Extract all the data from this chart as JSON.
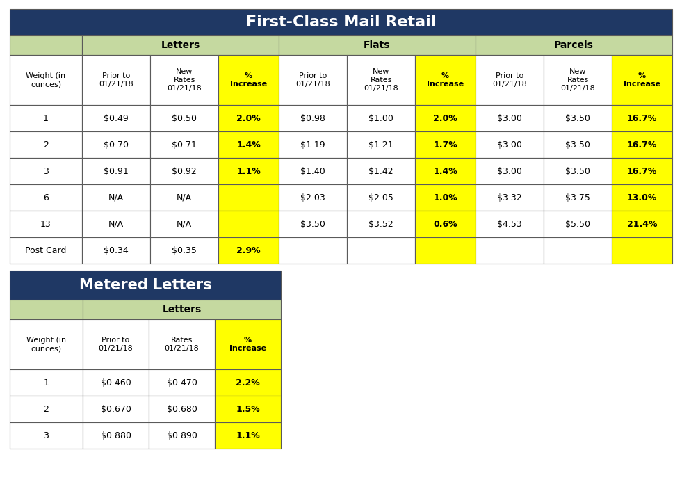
{
  "title1": "First-Class Mail Retail",
  "title2": "Metered Letters",
  "title_bg": "#1F3864",
  "title_fg": "#FFFFFF",
  "header_bg": "#C5D9A0",
  "header_fg": "#000000",
  "yellow_bg": "#FFFF00",
  "yellow_fg": "#000000",
  "white_bg": "#FFFFFF",
  "border_color": "#5A5A5A",
  "fcm_col_headers": [
    "Weight (in\nounces)",
    "Prior to\n01/21/18",
    "New\nRates\n01/21/18",
    "%\nIncrease",
    "Prior to\n01/21/18",
    "New\nRates\n01/21/18",
    "%\nIncrease",
    "Prior to\n01/21/18",
    "New\nRates\n01/21/18",
    "%\nIncrease"
  ],
  "fcm_rows": [
    [
      "1",
      "$0.49",
      "$0.50",
      "2.0%",
      "$0.98",
      "$1.00",
      "2.0%",
      "$3.00",
      "$3.50",
      "16.7%"
    ],
    [
      "2",
      "$0.70",
      "$0.71",
      "1.4%",
      "$1.19",
      "$1.21",
      "1.7%",
      "$3.00",
      "$3.50",
      "16.7%"
    ],
    [
      "3",
      "$0.91",
      "$0.92",
      "1.1%",
      "$1.40",
      "$1.42",
      "1.4%",
      "$3.00",
      "$3.50",
      "16.7%"
    ],
    [
      "6",
      "N/A",
      "N/A",
      "",
      "$2.03",
      "$2.05",
      "1.0%",
      "$3.32",
      "$3.75",
      "13.0%"
    ],
    [
      "13",
      "N/A",
      "N/A",
      "",
      "$3.50",
      "$3.52",
      "0.6%",
      "$4.53",
      "$5.50",
      "21.4%"
    ],
    [
      "Post Card",
      "$0.34",
      "$0.35",
      "2.9%",
      "",
      "",
      "",
      "",
      "",
      ""
    ]
  ],
  "ml_col_headers": [
    "Weight (in\nounces)",
    "Prior to\n01/21/18",
    "Rates\n01/21/18",
    "%\nIncrease"
  ],
  "ml_rows": [
    [
      "1",
      "$0.460",
      "$0.470",
      "2.2%"
    ],
    [
      "2",
      "$0.670",
      "$0.680",
      "1.5%"
    ],
    [
      "3",
      "$0.880",
      "$0.890",
      "1.1%"
    ]
  ]
}
